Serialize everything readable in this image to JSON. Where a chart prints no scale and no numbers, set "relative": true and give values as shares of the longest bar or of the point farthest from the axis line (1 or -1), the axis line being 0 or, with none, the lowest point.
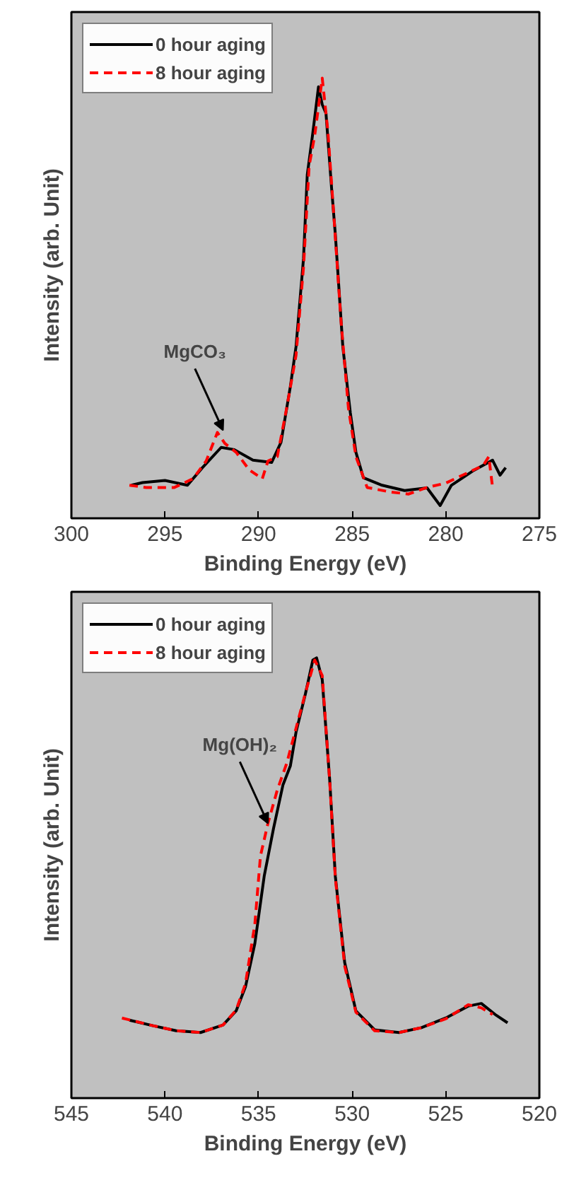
{
  "chart_data": [
    {
      "type": "line",
      "relative": true,
      "xlabel": "Binding Energy (eV)",
      "ylabel": "Intensity (arb. Unit)",
      "xlim": [
        300,
        275
      ],
      "xticks": [
        300,
        295,
        290,
        285,
        280,
        275
      ],
      "tick_labels": "x",
      "grid": false,
      "legend": "top left",
      "marker": "none",
      "annotations": [
        {
          "text": "MgCO₃",
          "x": 291.9,
          "y": 0.2
        }
      ],
      "series": [
        {
          "name": "0 hour aging",
          "color": "#000000",
          "line_style": "solid",
          "x": [
            296.8,
            296.2,
            295,
            293.8,
            293,
            292,
            291.3,
            290.3,
            289.3,
            288.8,
            288.3,
            288,
            287.6,
            287.4,
            287.1,
            286.8,
            286.6,
            286.4,
            286.1,
            285.9,
            285.5,
            285.1,
            284.8,
            284.4,
            283.4,
            282.2,
            281,
            280.3,
            279.7,
            278.5,
            277.5,
            277.1,
            276.8
          ],
          "values": [
            0.075,
            0.081,
            0.086,
            0.075,
            0.115,
            0.161,
            0.156,
            0.132,
            0.127,
            0.173,
            0.3,
            0.39,
            0.59,
            0.78,
            0.876,
            0.98,
            0.94,
            0.92,
            0.75,
            0.645,
            0.39,
            0.24,
            0.15,
            0.092,
            0.075,
            0.063,
            0.069,
            0.029,
            0.075,
            0.109,
            0.132,
            0.098,
            0.115
          ]
        },
        {
          "name": "8 hour aging",
          "color": "#ff0000",
          "line_style": "dashed",
          "x": [
            296.9,
            296,
            294.5,
            293.5,
            292.8,
            292.2,
            291.8,
            291.2,
            290.5,
            289.8,
            289.5,
            289,
            288.5,
            288,
            287.6,
            287.3,
            287,
            286.6,
            286.3,
            286,
            285.6,
            285.2,
            284.8,
            284.2,
            283,
            282,
            281,
            280,
            279,
            278,
            277.7,
            277.5
          ],
          "values": [
            0.075,
            0.07,
            0.07,
            0.09,
            0.13,
            0.195,
            0.17,
            0.15,
            0.11,
            0.09,
            0.13,
            0.14,
            0.25,
            0.37,
            0.57,
            0.8,
            0.87,
            1.0,
            0.88,
            0.7,
            0.45,
            0.25,
            0.14,
            0.07,
            0.06,
            0.055,
            0.07,
            0.08,
            0.1,
            0.12,
            0.14,
            0.07
          ]
        }
      ]
    },
    {
      "type": "line",
      "relative": true,
      "xlabel": "Binding Energy (eV)",
      "ylabel": "Intensity (arb. Unit)",
      "xlim": [
        545,
        520
      ],
      "xticks": [
        545,
        540,
        535,
        530,
        525,
        520
      ],
      "tick_labels": "x",
      "grid": false,
      "legend": "top left",
      "marker": "none",
      "annotations": [
        {
          "text": "Mg(OH)₂",
          "x": 534.5,
          "y": 0.624
        }
      ],
      "series": [
        {
          "name": "0 hour aging",
          "color": "#000000",
          "line_style": "solid",
          "x": [
            541.9,
            540.6,
            539.4,
            538.1,
            536.9,
            536.2,
            535.7,
            535.2,
            534.7,
            534.2,
            533.7,
            533.3,
            533,
            532.5,
            532.1,
            531.9,
            531.6,
            531.2,
            530.9,
            530.4,
            529.8,
            528.8,
            527.5,
            526.3,
            525,
            523.8,
            523.1,
            522.3,
            521.7
          ],
          "values": [
            0.177,
            0.164,
            0.153,
            0.149,
            0.166,
            0.198,
            0.253,
            0.351,
            0.504,
            0.613,
            0.711,
            0.755,
            0.831,
            0.918,
            0.995,
            1.0,
            0.951,
            0.722,
            0.504,
            0.308,
            0.198,
            0.155,
            0.149,
            0.16,
            0.182,
            0.209,
            0.215,
            0.188,
            0.171
          ]
        },
        {
          "name": "8 hour aging",
          "color": "#ff0000",
          "line_style": "dashed",
          "x": [
            542.3,
            540.6,
            539.4,
            538.1,
            536.9,
            536.2,
            535.7,
            535.2,
            534.9,
            534.5,
            534.0,
            533.5,
            533,
            532.5,
            532.0,
            531.6,
            531.2,
            530.9,
            530.4,
            529.8,
            528.8,
            527.5,
            526.3,
            525,
            523.8,
            523.1,
            522.5
          ],
          "values": [
            0.182,
            0.164,
            0.153,
            0.149,
            0.166,
            0.2,
            0.26,
            0.395,
            0.55,
            0.624,
            0.7,
            0.76,
            0.84,
            0.92,
            0.995,
            0.96,
            0.72,
            0.5,
            0.3,
            0.195,
            0.153,
            0.149,
            0.16,
            0.18,
            0.212,
            0.205,
            0.19
          ]
        }
      ]
    }
  ]
}
